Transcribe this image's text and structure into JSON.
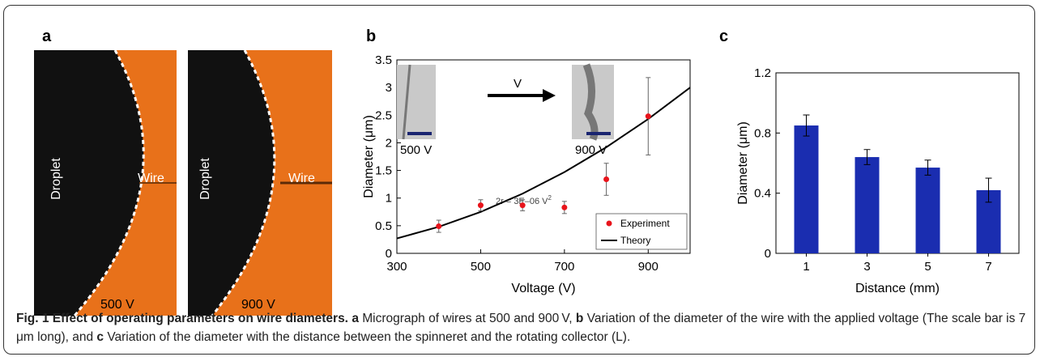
{
  "panels": {
    "a": {
      "letter": "a",
      "photos": [
        {
          "droplet_label": "Droplet",
          "wire_label": "Wire",
          "voltage_label": "500 V"
        },
        {
          "droplet_label": "Droplet",
          "wire_label": "Wire",
          "voltage_label": "900 V"
        }
      ]
    },
    "b": {
      "letter": "b",
      "inset_left_label": "500 V",
      "inset_right_label": "900 V",
      "arrow_label": "V",
      "equation": "2r = 3E–06 V",
      "equation_sup": "2"
    },
    "c": {
      "letter": "c"
    }
  },
  "caption": {
    "fig_label": "Fig. 1 Effect of operating parameters on wire diameters.",
    "a_letter": "a",
    "a_text": " Micrograph of wires at 500 and 900 V, ",
    "b_letter": "b",
    "b_text": " Variation of the diameter of the wire with the applied voltage (The scale bar is 7 μm long), and ",
    "c_letter": "c",
    "c_text": " Variation of the diameter with the distance between the spinneret and the rotating collector (L)."
  },
  "chart_data": [
    {
      "type": "scatter",
      "xlabel": "Voltage (V)",
      "ylabel": "Diameter (μm)",
      "xlim": [
        300,
        1000
      ],
      "ylim": [
        0,
        3.5
      ],
      "xticks": [
        "300",
        "500",
        "700",
        "900"
      ],
      "yticks": [
        "0",
        "0.5",
        "1",
        "1.5",
        "2",
        "2.5",
        "3",
        "3.5"
      ],
      "legend_position": "bottom-right",
      "series": [
        {
          "name": "Experiment",
          "color": "#e8141b",
          "x": [
            400,
            500,
            600,
            700,
            800,
            900
          ],
          "y": [
            0.49,
            0.87,
            0.87,
            0.83,
            1.34,
            2.48
          ],
          "err": [
            0.11,
            0.1,
            0.1,
            0.11,
            0.29,
            0.7
          ]
        },
        {
          "name": "Theory",
          "color": "#000000",
          "curve": "2r = 3E-06 V^2",
          "x": [
            300,
            400,
            500,
            600,
            700,
            800,
            900,
            1000
          ],
          "y": [
            0.27,
            0.48,
            0.75,
            1.08,
            1.47,
            1.92,
            2.43,
            3.0
          ]
        }
      ]
    },
    {
      "type": "bar",
      "xlabel": "Distance (mm)",
      "ylabel": "Diameter (μm)",
      "ylim": [
        0,
        1.2
      ],
      "yticks": [
        "0",
        "0.4",
        "0.8",
        "1.2"
      ],
      "categories": [
        "1",
        "3",
        "5",
        "7"
      ],
      "values": [
        0.85,
        0.64,
        0.57,
        0.42
      ],
      "err": [
        0.07,
        0.05,
        0.05,
        0.08
      ],
      "color": "#1a2db0"
    }
  ]
}
